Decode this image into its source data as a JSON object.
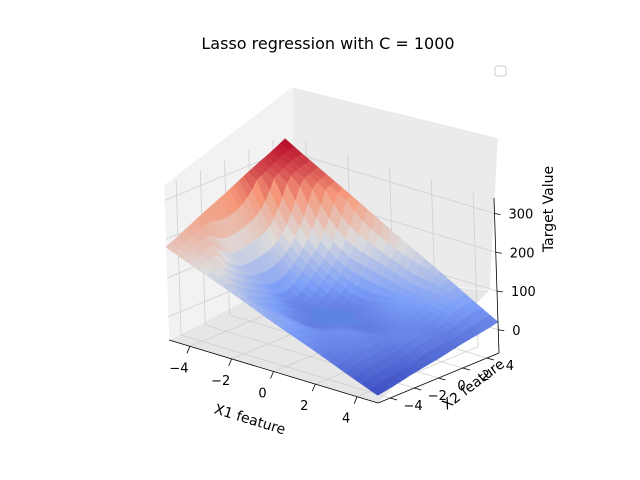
{
  "chart_data": {
    "type": "surface3d",
    "title": "Lasso regression with C = 1000",
    "xlabel": "X1 feature",
    "ylabel": "X2 feature",
    "zlabel": "Target Value",
    "xlim": [
      -5,
      5
    ],
    "ylim": [
      -5,
      5
    ],
    "zlim": [
      -60,
      340
    ],
    "x_ticks": [
      -4,
      -2,
      0,
      2,
      4
    ],
    "y_ticks": [
      -4,
      -2,
      0,
      2,
      4
    ],
    "z_ticks": [
      0,
      100,
      200,
      300
    ],
    "x_tick_labels": [
      "−4",
      "−2",
      "0",
      "2",
      "4"
    ],
    "y_tick_labels": [
      "−4",
      "−2",
      "0",
      "2",
      "4"
    ],
    "z_tick_labels": [
      "0",
      "100",
      "200",
      "300"
    ],
    "surface_corner_values": {
      "x_-5_y_-5": 180,
      "x_5_y_-5": -40,
      "x_5_y_5": 20,
      "x_-5_y_5": 330,
      "center_plateau": 15
    },
    "colormap": "coolwarm",
    "grid": true,
    "legend": {
      "entries": [],
      "placement": "top-right"
    }
  }
}
